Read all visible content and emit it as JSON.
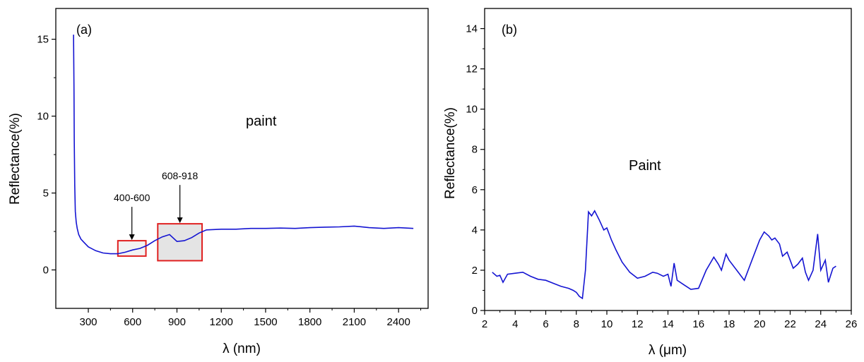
{
  "chart_data": [
    {
      "type": "line",
      "panel_label": "(a)",
      "annotation": "paint",
      "xlabel": "λ (nm)",
      "ylabel": "Reflectance(%)",
      "xlim": [
        80,
        2600
      ],
      "ylim": [
        -2.5,
        17
      ],
      "x_ticks": [
        300,
        600,
        900,
        1200,
        1500,
        1800,
        2100,
        2400
      ],
      "y_ticks": [
        0,
        5,
        10,
        15
      ],
      "color": "#1414d2",
      "series": [
        {
          "x": [
            200,
            203,
            205,
            208,
            212,
            218,
            225,
            235,
            250,
            270,
            300,
            350,
            400,
            450,
            500,
            550,
            600,
            650,
            700,
            750,
            800,
            850,
            900,
            950,
            1000,
            1050,
            1100,
            1200,
            1300,
            1400,
            1500,
            1600,
            1700,
            1800,
            1900,
            2000,
            2100,
            2200,
            2300,
            2400,
            2500
          ],
          "y": [
            15.3,
            12.0,
            8.5,
            5.5,
            3.8,
            3.1,
            2.7,
            2.3,
            2.0,
            1.8,
            1.5,
            1.25,
            1.1,
            1.05,
            1.05,
            1.15,
            1.3,
            1.4,
            1.6,
            1.9,
            2.15,
            2.3,
            1.85,
            1.9,
            2.1,
            2.4,
            2.6,
            2.65,
            2.65,
            2.7,
            2.7,
            2.72,
            2.7,
            2.75,
            2.78,
            2.8,
            2.85,
            2.75,
            2.7,
            2.75,
            2.7
          ]
        }
      ],
      "regions": [
        {
          "label": "400-600",
          "x0": 500,
          "x1": 690,
          "y0": 0.9,
          "y1": 1.9
        },
        {
          "label": "608-918",
          "x0": 770,
          "x1": 1070,
          "y0": 0.6,
          "y1": 3.0
        }
      ]
    },
    {
      "type": "line",
      "panel_label": "(b)",
      "annotation": "Paint",
      "xlabel": "λ (μm)",
      "ylabel": "Reflectance(%)",
      "xlim": [
        2,
        26
      ],
      "ylim": [
        0,
        15
      ],
      "x_ticks": [
        2,
        4,
        6,
        8,
        10,
        12,
        14,
        16,
        18,
        20,
        22,
        24,
        26
      ],
      "y_ticks": [
        0,
        2,
        4,
        6,
        8,
        10,
        12,
        14
      ],
      "color": "#1414d2",
      "series": [
        {
          "x": [
            2.5,
            2.8,
            3.0,
            3.2,
            3.5,
            4.0,
            4.5,
            5.0,
            5.5,
            6.0,
            6.5,
            7.0,
            7.5,
            7.8,
            8.0,
            8.2,
            8.4,
            8.6,
            8.8,
            9.0,
            9.2,
            9.5,
            9.8,
            10.0,
            10.3,
            10.6,
            11.0,
            11.5,
            12.0,
            12.5,
            13.0,
            13.3,
            13.7,
            14.0,
            14.2,
            14.4,
            14.6,
            15.0,
            15.5,
            16.0,
            16.5,
            17.0,
            17.3,
            17.5,
            17.8,
            18.0,
            18.5,
            19.0,
            19.5,
            20.0,
            20.3,
            20.6,
            20.8,
            21.0,
            21.3,
            21.5,
            21.8,
            22.0,
            22.2,
            22.5,
            22.8,
            23.0,
            23.2,
            23.5,
            23.8,
            24.0,
            24.3,
            24.5,
            24.8,
            25.0
          ],
          "y": [
            1.9,
            1.7,
            1.75,
            1.4,
            1.8,
            1.85,
            1.9,
            1.7,
            1.55,
            1.5,
            1.35,
            1.2,
            1.1,
            1.0,
            0.9,
            0.7,
            0.6,
            2.0,
            4.9,
            4.7,
            4.95,
            4.5,
            4.0,
            4.1,
            3.5,
            3.0,
            2.4,
            1.9,
            1.6,
            1.7,
            1.9,
            1.85,
            1.7,
            1.8,
            1.2,
            2.35,
            1.5,
            1.3,
            1.05,
            1.1,
            2.0,
            2.65,
            2.3,
            2.0,
            2.8,
            2.5,
            2.0,
            1.5,
            2.5,
            3.5,
            3.9,
            3.7,
            3.5,
            3.6,
            3.3,
            2.7,
            2.9,
            2.5,
            2.1,
            2.3,
            2.6,
            1.9,
            1.5,
            2.0,
            3.8,
            2.0,
            2.5,
            1.4,
            2.1,
            2.2
          ]
        }
      ]
    }
  ]
}
